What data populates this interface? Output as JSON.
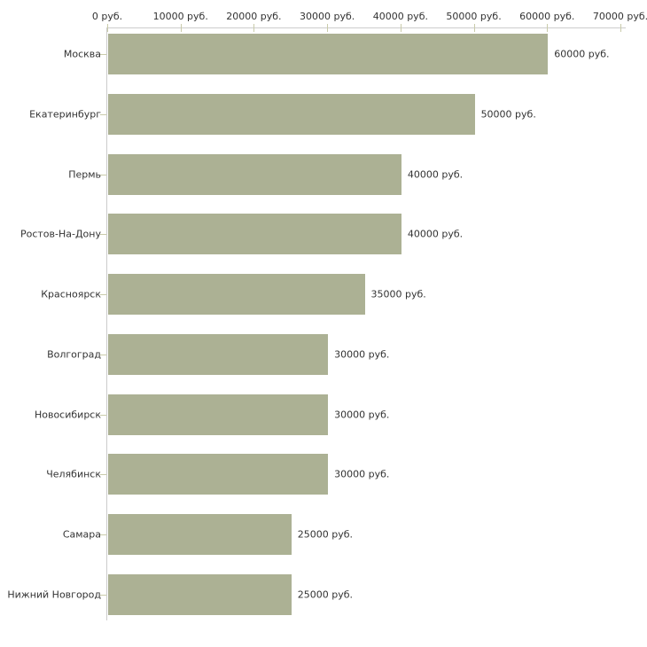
{
  "chart_data": {
    "type": "bar",
    "orientation": "horizontal",
    "title": "",
    "xlabel": "",
    "ylabel": "",
    "categories": [
      "Москва",
      "Екатеринбург",
      "Пермь",
      "Ростов-На-Дону",
      "Красноярск",
      "Волгоград",
      "Новосибирск",
      "Челябинск",
      "Самара",
      "Нижний Новгород"
    ],
    "values": [
      60000,
      50000,
      40000,
      40000,
      35000,
      30000,
      30000,
      30000,
      25000,
      25000
    ],
    "bar_value_labels": [
      "60000 руб.",
      "50000 руб.",
      "40000 руб.",
      "40000 руб.",
      "35000 руб.",
      "30000 руб.",
      "30000 руб.",
      "30000 руб.",
      "25000 руб.",
      "25000 руб."
    ],
    "x_ticks": [
      0,
      10000,
      20000,
      30000,
      40000,
      50000,
      60000,
      70000
    ],
    "x_tick_labels": [
      "0 руб.",
      "10000 руб.",
      "20000 руб.",
      "30000 руб.",
      "40000 руб.",
      "50000 руб.",
      "60000 руб.",
      "70000 руб."
    ],
    "xlim": [
      0,
      70000
    ],
    "grid": false,
    "legend": null,
    "colors": {
      "bar_fill": "#acb194",
      "axis_line": "#cccccc",
      "tick_mark": "#c9cbaa",
      "text": "#333333",
      "background": "#ffffff"
    }
  }
}
